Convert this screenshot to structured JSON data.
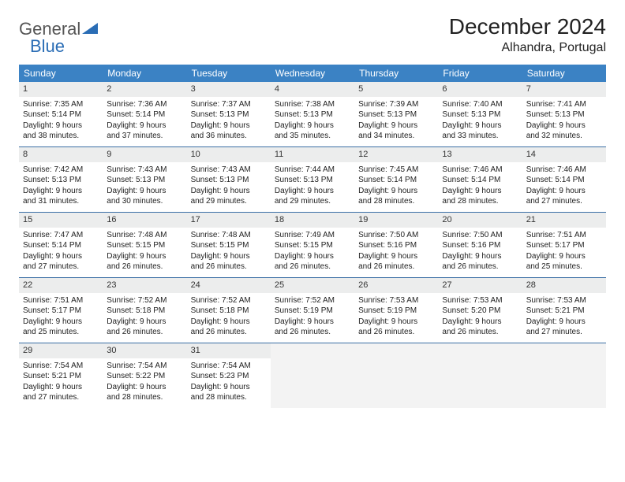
{
  "logo": {
    "word1": "General",
    "word2": "Blue"
  },
  "title": "December 2024",
  "location": "Alhandra, Portugal",
  "colors": {
    "header_bg": "#3b82c4",
    "header_text": "#ffffff",
    "rule": "#3b6fa5",
    "daynum_bg": "#eceded",
    "logo_gray": "#555555",
    "logo_blue": "#2a6db5"
  },
  "day_names": [
    "Sunday",
    "Monday",
    "Tuesday",
    "Wednesday",
    "Thursday",
    "Friday",
    "Saturday"
  ],
  "weeks": [
    [
      {
        "n": "1",
        "sr": "7:35 AM",
        "ss": "5:14 PM",
        "dl1": "Daylight: 9 hours",
        "dl2": "and 38 minutes."
      },
      {
        "n": "2",
        "sr": "7:36 AM",
        "ss": "5:14 PM",
        "dl1": "Daylight: 9 hours",
        "dl2": "and 37 minutes."
      },
      {
        "n": "3",
        "sr": "7:37 AM",
        "ss": "5:13 PM",
        "dl1": "Daylight: 9 hours",
        "dl2": "and 36 minutes."
      },
      {
        "n": "4",
        "sr": "7:38 AM",
        "ss": "5:13 PM",
        "dl1": "Daylight: 9 hours",
        "dl2": "and 35 minutes."
      },
      {
        "n": "5",
        "sr": "7:39 AM",
        "ss": "5:13 PM",
        "dl1": "Daylight: 9 hours",
        "dl2": "and 34 minutes."
      },
      {
        "n": "6",
        "sr": "7:40 AM",
        "ss": "5:13 PM",
        "dl1": "Daylight: 9 hours",
        "dl2": "and 33 minutes."
      },
      {
        "n": "7",
        "sr": "7:41 AM",
        "ss": "5:13 PM",
        "dl1": "Daylight: 9 hours",
        "dl2": "and 32 minutes."
      }
    ],
    [
      {
        "n": "8",
        "sr": "7:42 AM",
        "ss": "5:13 PM",
        "dl1": "Daylight: 9 hours",
        "dl2": "and 31 minutes."
      },
      {
        "n": "9",
        "sr": "7:43 AM",
        "ss": "5:13 PM",
        "dl1": "Daylight: 9 hours",
        "dl2": "and 30 minutes."
      },
      {
        "n": "10",
        "sr": "7:43 AM",
        "ss": "5:13 PM",
        "dl1": "Daylight: 9 hours",
        "dl2": "and 29 minutes."
      },
      {
        "n": "11",
        "sr": "7:44 AM",
        "ss": "5:13 PM",
        "dl1": "Daylight: 9 hours",
        "dl2": "and 29 minutes."
      },
      {
        "n": "12",
        "sr": "7:45 AM",
        "ss": "5:14 PM",
        "dl1": "Daylight: 9 hours",
        "dl2": "and 28 minutes."
      },
      {
        "n": "13",
        "sr": "7:46 AM",
        "ss": "5:14 PM",
        "dl1": "Daylight: 9 hours",
        "dl2": "and 28 minutes."
      },
      {
        "n": "14",
        "sr": "7:46 AM",
        "ss": "5:14 PM",
        "dl1": "Daylight: 9 hours",
        "dl2": "and 27 minutes."
      }
    ],
    [
      {
        "n": "15",
        "sr": "7:47 AM",
        "ss": "5:14 PM",
        "dl1": "Daylight: 9 hours",
        "dl2": "and 27 minutes."
      },
      {
        "n": "16",
        "sr": "7:48 AM",
        "ss": "5:15 PM",
        "dl1": "Daylight: 9 hours",
        "dl2": "and 26 minutes."
      },
      {
        "n": "17",
        "sr": "7:48 AM",
        "ss": "5:15 PM",
        "dl1": "Daylight: 9 hours",
        "dl2": "and 26 minutes."
      },
      {
        "n": "18",
        "sr": "7:49 AM",
        "ss": "5:15 PM",
        "dl1": "Daylight: 9 hours",
        "dl2": "and 26 minutes."
      },
      {
        "n": "19",
        "sr": "7:50 AM",
        "ss": "5:16 PM",
        "dl1": "Daylight: 9 hours",
        "dl2": "and 26 minutes."
      },
      {
        "n": "20",
        "sr": "7:50 AM",
        "ss": "5:16 PM",
        "dl1": "Daylight: 9 hours",
        "dl2": "and 26 minutes."
      },
      {
        "n": "21",
        "sr": "7:51 AM",
        "ss": "5:17 PM",
        "dl1": "Daylight: 9 hours",
        "dl2": "and 25 minutes."
      }
    ],
    [
      {
        "n": "22",
        "sr": "7:51 AM",
        "ss": "5:17 PM",
        "dl1": "Daylight: 9 hours",
        "dl2": "and 25 minutes."
      },
      {
        "n": "23",
        "sr": "7:52 AM",
        "ss": "5:18 PM",
        "dl1": "Daylight: 9 hours",
        "dl2": "and 26 minutes."
      },
      {
        "n": "24",
        "sr": "7:52 AM",
        "ss": "5:18 PM",
        "dl1": "Daylight: 9 hours",
        "dl2": "and 26 minutes."
      },
      {
        "n": "25",
        "sr": "7:52 AM",
        "ss": "5:19 PM",
        "dl1": "Daylight: 9 hours",
        "dl2": "and 26 minutes."
      },
      {
        "n": "26",
        "sr": "7:53 AM",
        "ss": "5:19 PM",
        "dl1": "Daylight: 9 hours",
        "dl2": "and 26 minutes."
      },
      {
        "n": "27",
        "sr": "7:53 AM",
        "ss": "5:20 PM",
        "dl1": "Daylight: 9 hours",
        "dl2": "and 26 minutes."
      },
      {
        "n": "28",
        "sr": "7:53 AM",
        "ss": "5:21 PM",
        "dl1": "Daylight: 9 hours",
        "dl2": "and 27 minutes."
      }
    ],
    [
      {
        "n": "29",
        "sr": "7:54 AM",
        "ss": "5:21 PM",
        "dl1": "Daylight: 9 hours",
        "dl2": "and 27 minutes."
      },
      {
        "n": "30",
        "sr": "7:54 AM",
        "ss": "5:22 PM",
        "dl1": "Daylight: 9 hours",
        "dl2": "and 28 minutes."
      },
      {
        "n": "31",
        "sr": "7:54 AM",
        "ss": "5:23 PM",
        "dl1": "Daylight: 9 hours",
        "dl2": "and 28 minutes."
      },
      null,
      null,
      null,
      null
    ]
  ],
  "labels": {
    "sunrise_prefix": "Sunrise: ",
    "sunset_prefix": "Sunset: "
  }
}
